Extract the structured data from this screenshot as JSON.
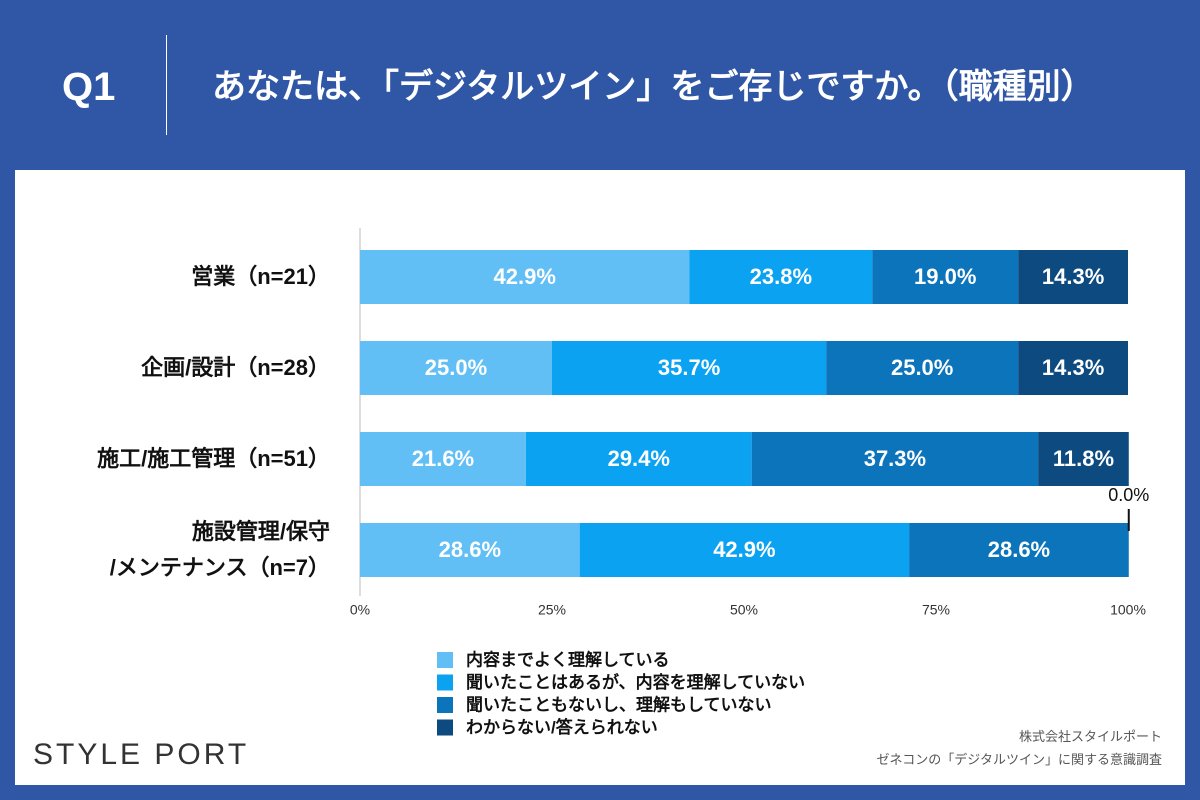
{
  "header": {
    "label": "Q1"
  },
  "footer": {
    "logo": "STYLE PORT",
    "source": [
      "株式会社スタイルポート",
      "ゼネコンの「デジタルツイン」に関する意識調査"
    ]
  },
  "chart_data": {
    "type": "stacked-barh",
    "title": "あなたは、「デジタルツイン」をご存じですか。（職種別）",
    "categories": [
      "営業（n=21）",
      "企画/設計（n=28）",
      "施工/施工管理（n=51）",
      "施設管理/保守\n/メンテナンス（n=7）"
    ],
    "series": [
      {
        "name": "内容までよく理解している",
        "color": "#62bff6",
        "values": [
          42.9,
          25.0,
          21.6,
          28.6
        ],
        "value_labels": [
          "42.9%",
          "25.0%",
          "21.6%",
          "28.6%"
        ]
      },
      {
        "name": "聞いたことはあるが、内容を理解していない",
        "color": "#0ca2f2",
        "values": [
          23.8,
          35.7,
          29.4,
          42.9
        ],
        "value_labels": [
          "23.8%",
          "35.7%",
          "29.4%",
          "42.9%"
        ]
      },
      {
        "name": "聞いたこともないし、理解もしていない",
        "color": "#0b74bb",
        "values": [
          19.0,
          25.0,
          37.3,
          28.6
        ],
        "value_labels": [
          "19.0%",
          "25.0%",
          "37.3%",
          "28.6%"
        ]
      },
      {
        "name": "わからない/答えられない",
        "color": "#0c4a7f",
        "values": [
          14.3,
          14.3,
          11.8,
          0.0
        ],
        "value_labels": [
          "14.3%",
          "14.3%",
          "11.8%",
          "0.0%"
        ]
      }
    ],
    "xlim": [
      0,
      100
    ],
    "xticks": [
      {
        "value": 0,
        "label": "0%"
      },
      {
        "value": 25,
        "label": "25%"
      },
      {
        "value": 50,
        "label": "50%"
      },
      {
        "value": 75,
        "label": "75%"
      },
      {
        "value": 100,
        "label": "100%"
      }
    ]
  }
}
